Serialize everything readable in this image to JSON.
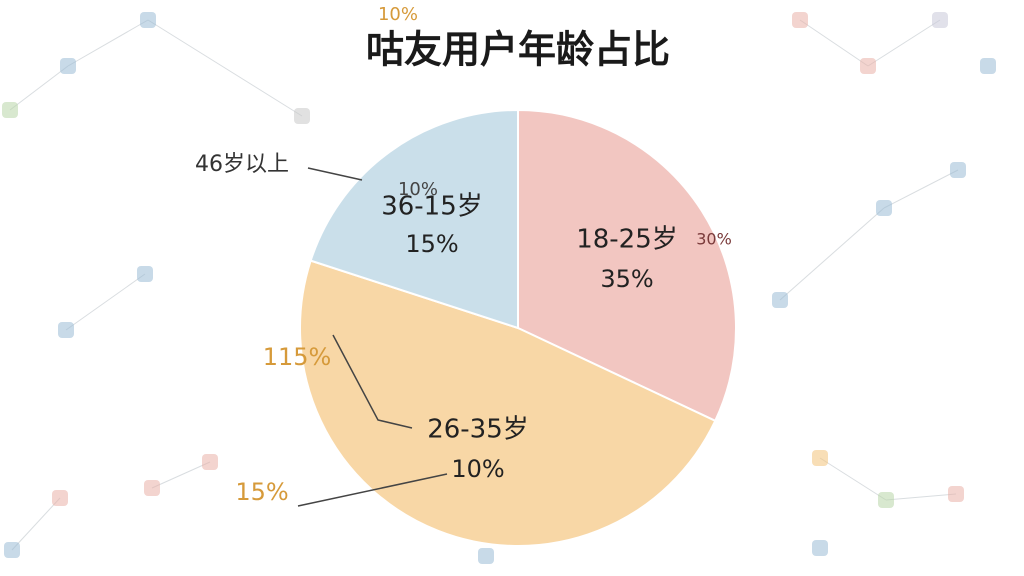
{
  "chart_data": {
    "type": "pie",
    "title": "咕友用户年龄占比",
    "categories": [
      "18-25岁",
      "26-35岁",
      "36-15岁"
    ],
    "values": [
      32,
      48,
      20
    ],
    "colors": [
      "#f2c6c1",
      "#f8d7a6",
      "#cadfea"
    ],
    "annotations": [
      "35%",
      "10%",
      "15%",
      "46岁以上",
      "10%",
      "30%",
      "115%",
      "15%",
      "10%"
    ]
  }
}
